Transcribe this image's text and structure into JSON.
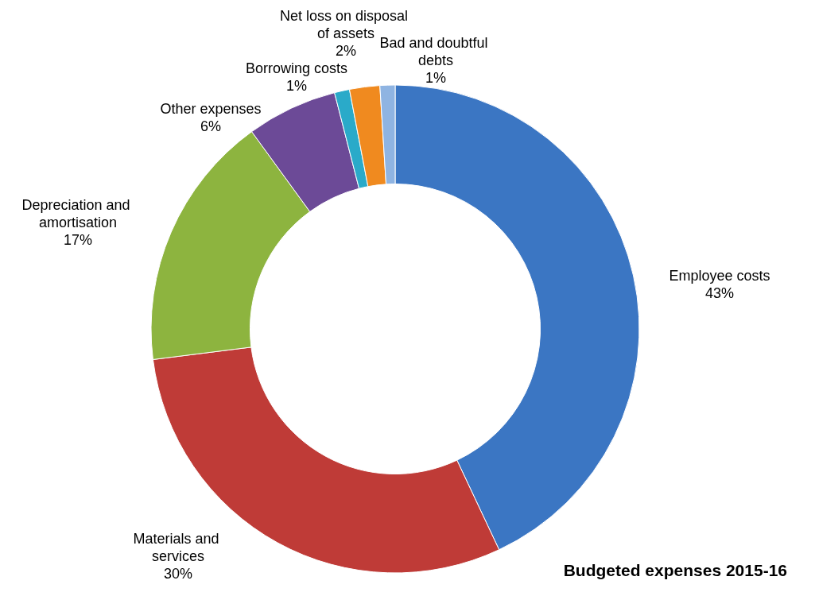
{
  "chart_data": {
    "type": "donut",
    "title": "Budgeted expenses 2015-16",
    "categories": [
      "Employee costs",
      "Materials and services",
      "Depreciation and amortisation",
      "Other expenses",
      "Borrowing costs",
      "Net loss on disposal of assets",
      "Bad and doubtful debts"
    ],
    "values": [
      43,
      30,
      17,
      6,
      1,
      2,
      1
    ],
    "colors": [
      "#3b76c3",
      "#bf3b37",
      "#8db43f",
      "#6c4a97",
      "#2aaac9",
      "#f08a1f",
      "#8fb4e2"
    ],
    "value_labels": [
      "43%",
      "30%",
      "17%",
      "6%",
      "1%",
      "2%",
      "1%"
    ],
    "legend": false
  }
}
